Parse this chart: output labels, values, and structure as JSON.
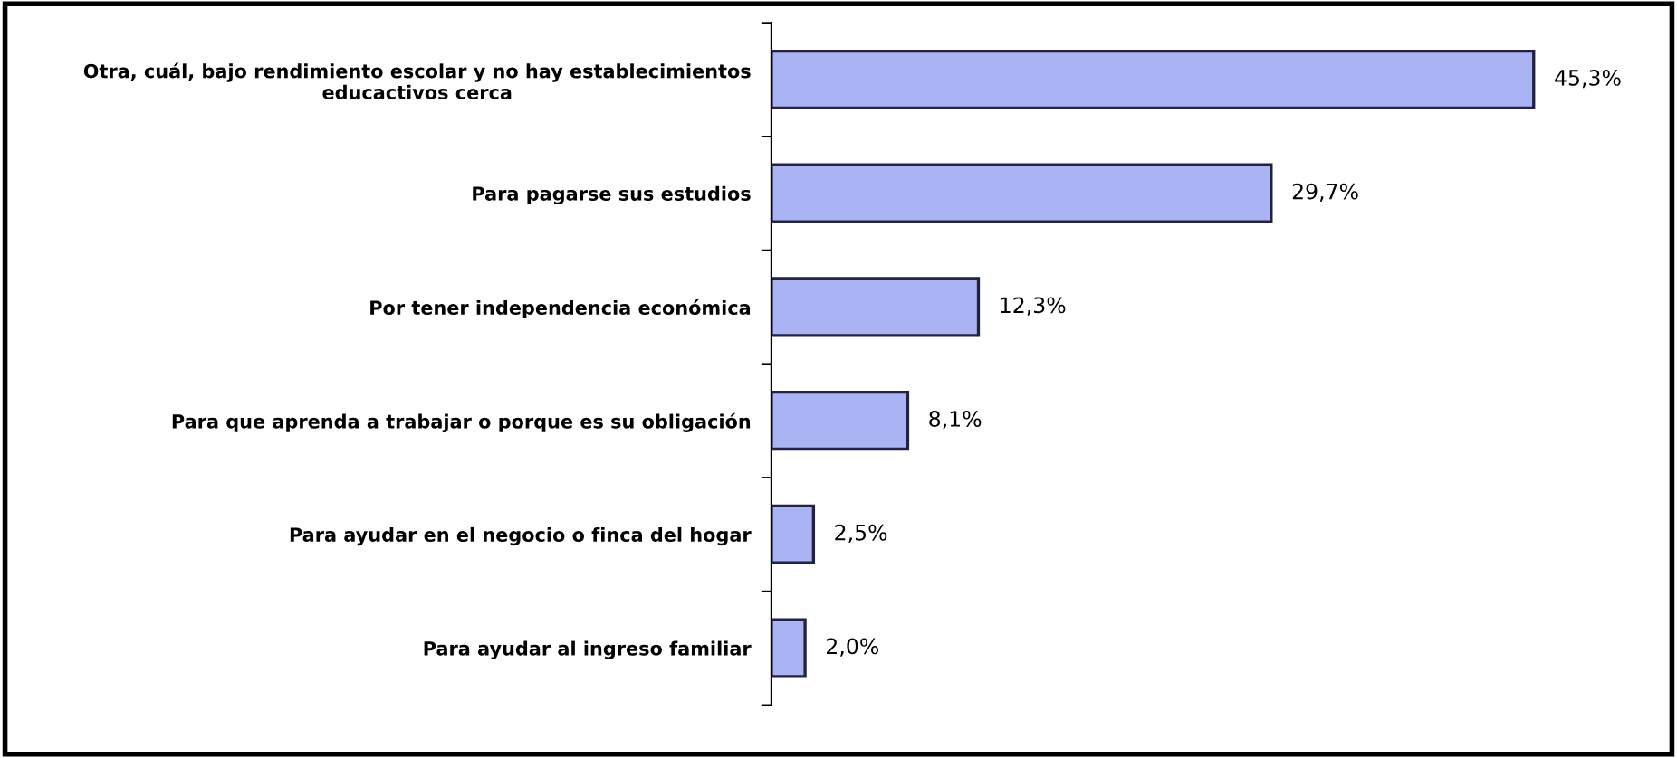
{
  "chart_data": {
    "type": "bar",
    "orientation": "horizontal",
    "categories": [
      "Otra, cuál, bajo rendimiento escolar y no hay establecimientos\neducactivos cerca",
      "Para pagarse sus estudios",
      "Por tener independencia económica",
      "Para que aprenda a trabajar o porque es su obligación",
      "Para ayudar en el negocio o finca del hogar",
      "Para ayudar al ingreso familiar"
    ],
    "values": [
      45.3,
      29.7,
      12.3,
      8.1,
      2.5,
      2.0
    ],
    "value_labels": [
      "45,3%",
      "29,7%",
      "12,3%",
      "8,1%",
      "2,5%",
      "2,0%"
    ],
    "color": "#aab4f4",
    "grid": false,
    "legend": false
  }
}
